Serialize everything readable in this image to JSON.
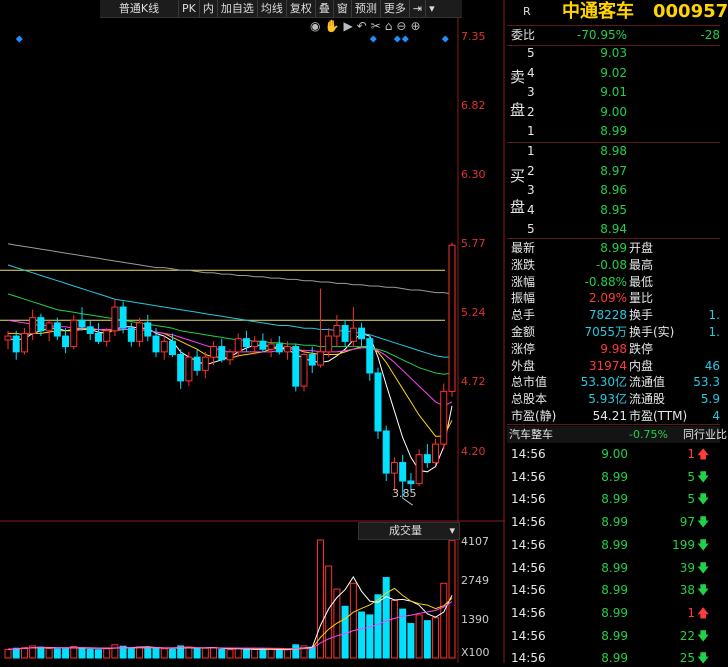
{
  "toolbar": {
    "items": [
      "普通K线",
      "PK",
      "内",
      "加自选",
      "均线",
      "复权",
      "叠",
      "窗",
      "预测",
      "更多"
    ]
  },
  "chart": {
    "price_labels": [
      "7.35",
      "6.82",
      "6.30",
      "5.77",
      "5.24",
      "4.72",
      "4.20"
    ],
    "low_marker": "3.85",
    "volume_title": "成交量",
    "volume_labels": [
      "4107",
      "2749",
      "1390",
      "X100"
    ]
  },
  "chart_data": {
    "type": "candlestick",
    "ylim": [
      3.7,
      7.45
    ],
    "price_ticks": [
      7.35,
      6.82,
      6.3,
      5.77,
      5.24,
      4.72,
      4.2
    ],
    "low": 3.85,
    "volume_ticks": [
      4107,
      2749,
      1390
    ],
    "volume_unit": "X100",
    "candles": [
      [
        5.05,
        5.12,
        4.98,
        5.08,
        300
      ],
      [
        5.08,
        5.12,
        4.9,
        4.96,
        340
      ],
      [
        4.96,
        5.14,
        4.94,
        5.1,
        360
      ],
      [
        5.1,
        5.28,
        5.05,
        5.22,
        420
      ],
      [
        5.22,
        5.25,
        5.08,
        5.12,
        380
      ],
      [
        5.12,
        5.2,
        5.04,
        5.18,
        330
      ],
      [
        5.18,
        5.22,
        5.05,
        5.08,
        310
      ],
      [
        5.08,
        5.14,
        4.95,
        5.0,
        340
      ],
      [
        5.0,
        5.24,
        4.98,
        5.2,
        400
      ],
      [
        5.2,
        5.3,
        5.12,
        5.15,
        360
      ],
      [
        5.15,
        5.2,
        5.05,
        5.1,
        300
      ],
      [
        5.1,
        5.18,
        5.02,
        5.04,
        290
      ],
      [
        5.04,
        5.14,
        5.0,
        5.12,
        320
      ],
      [
        5.12,
        5.36,
        5.08,
        5.3,
        460
      ],
      [
        5.3,
        5.34,
        5.1,
        5.14,
        410
      ],
      [
        5.14,
        5.18,
        5.0,
        5.04,
        330
      ],
      [
        5.04,
        5.22,
        5.0,
        5.18,
        380
      ],
      [
        5.18,
        5.24,
        5.04,
        5.08,
        350
      ],
      [
        5.08,
        5.14,
        4.92,
        4.96,
        360
      ],
      [
        4.96,
        5.08,
        4.9,
        5.04,
        320
      ],
      [
        5.04,
        5.1,
        4.92,
        4.94,
        300
      ],
      [
        4.94,
        4.98,
        4.68,
        4.74,
        420
      ],
      [
        4.74,
        4.96,
        4.7,
        4.92,
        380
      ],
      [
        4.92,
        4.98,
        4.78,
        4.82,
        330
      ],
      [
        4.82,
        4.96,
        4.76,
        4.92,
        340
      ],
      [
        4.92,
        5.04,
        4.86,
        5.0,
        350
      ],
      [
        5.0,
        5.06,
        4.88,
        4.9,
        300
      ],
      [
        4.9,
        4.98,
        4.86,
        4.96,
        290
      ],
      [
        4.96,
        5.1,
        4.92,
        5.06,
        330
      ],
      [
        5.06,
        5.12,
        4.96,
        5.0,
        310
      ],
      [
        5.0,
        5.08,
        4.94,
        5.04,
        300
      ],
      [
        5.04,
        5.1,
        4.96,
        4.98,
        290
      ],
      [
        4.98,
        5.06,
        4.92,
        5.02,
        300
      ],
      [
        5.02,
        5.08,
        4.94,
        4.96,
        280
      ],
      [
        4.96,
        5.04,
        4.9,
        5.0,
        290
      ],
      [
        5.0,
        5.02,
        4.66,
        4.7,
        460
      ],
      [
        4.7,
        4.98,
        4.66,
        4.94,
        420
      ],
      [
        4.94,
        5.0,
        4.8,
        4.86,
        380
      ],
      [
        4.86,
        5.44,
        4.84,
        4.96,
        4107
      ],
      [
        4.96,
        5.14,
        4.92,
        5.08,
        3200
      ],
      [
        5.08,
        5.24,
        5.0,
        5.16,
        2400
      ],
      [
        5.16,
        5.2,
        5.0,
        5.04,
        1800
      ],
      [
        5.04,
        5.3,
        5.0,
        5.14,
        2600
      ],
      [
        5.14,
        5.18,
        5.0,
        5.06,
        1600
      ],
      [
        5.06,
        5.08,
        4.74,
        4.8,
        1500
      ],
      [
        4.8,
        4.84,
        4.3,
        4.36,
        2200
      ],
      [
        4.36,
        4.4,
        3.98,
        4.04,
        2800
      ],
      [
        4.04,
        4.16,
        3.9,
        4.12,
        2000
      ],
      [
        4.12,
        4.18,
        3.85,
        3.98,
        1700
      ],
      [
        3.98,
        4.04,
        3.9,
        3.96,
        1200
      ],
      [
        3.96,
        4.22,
        3.94,
        4.18,
        1500
      ],
      [
        4.18,
        4.26,
        4.08,
        4.12,
        1300
      ],
      [
        4.12,
        4.3,
        4.1,
        4.26,
        1400
      ],
      [
        4.26,
        4.72,
        4.22,
        4.66,
        2600
      ],
      [
        4.66,
        5.79,
        4.62,
        5.77,
        4100
      ]
    ],
    "ma_series": [
      {
        "color": "#ffffff",
        "values": [
          5.06,
          5.05,
          5.06,
          5.1,
          5.12,
          5.14,
          5.14,
          5.12,
          5.13,
          5.14,
          5.13,
          5.11,
          5.1,
          5.13,
          5.15,
          5.15,
          5.14,
          5.14,
          5.1,
          5.08,
          5.04,
          4.96,
          4.92,
          4.89,
          4.86,
          4.88,
          4.9,
          4.92,
          4.96,
          4.99,
          5.01,
          5.01,
          5.0,
          4.99,
          4.98,
          4.94,
          4.91,
          4.89,
          4.88,
          4.89,
          4.93,
          4.98,
          5.05,
          5.1,
          5.08,
          4.92,
          4.71,
          4.51,
          4.31,
          4.16,
          4.06,
          4.05,
          4.09,
          4.24,
          4.55
        ]
      },
      {
        "color": "#ffd400",
        "values": [
          5.1,
          5.1,
          5.09,
          5.1,
          5.1,
          5.11,
          5.12,
          5.12,
          5.12,
          5.13,
          5.13,
          5.13,
          5.12,
          5.12,
          5.13,
          5.13,
          5.13,
          5.12,
          5.11,
          5.1,
          5.07,
          5.04,
          5.01,
          4.98,
          4.94,
          4.92,
          4.92,
          4.91,
          4.93,
          4.94,
          4.95,
          4.96,
          4.98,
          4.99,
          5.0,
          4.98,
          4.96,
          4.95,
          4.94,
          4.94,
          4.94,
          4.96,
          4.98,
          5.0,
          5.0,
          4.96,
          4.88,
          4.78,
          4.68,
          4.58,
          4.48,
          4.4,
          4.32,
          4.32,
          4.44
        ]
      },
      {
        "color": "#ff44ff",
        "values": [
          5.2,
          5.19,
          5.18,
          5.17,
          5.16,
          5.16,
          5.15,
          5.15,
          5.14,
          5.14,
          5.14,
          5.13,
          5.13,
          5.13,
          5.13,
          5.13,
          5.13,
          5.12,
          5.11,
          5.1,
          5.09,
          5.07,
          5.05,
          5.03,
          5.01,
          4.99,
          4.97,
          4.96,
          4.96,
          4.96,
          4.96,
          4.96,
          4.96,
          4.97,
          4.98,
          4.98,
          4.97,
          4.97,
          4.96,
          4.96,
          4.96,
          4.97,
          4.98,
          4.99,
          4.99,
          4.97,
          4.93,
          4.88,
          4.82,
          4.76,
          4.7,
          4.64,
          4.58,
          4.55,
          4.58
        ]
      },
      {
        "color": "#22d04a",
        "values": [
          5.4,
          5.38,
          5.36,
          5.34,
          5.32,
          5.3,
          5.28,
          5.27,
          5.26,
          5.25,
          5.24,
          5.23,
          5.22,
          5.21,
          5.2,
          5.19,
          5.18,
          5.17,
          5.16,
          5.15,
          5.14,
          5.12,
          5.11,
          5.1,
          5.09,
          5.08,
          5.07,
          5.06,
          5.05,
          5.05,
          5.04,
          5.04,
          5.03,
          5.03,
          5.02,
          5.02,
          5.01,
          5.01,
          5.0,
          5.0,
          5.0,
          5.0,
          5.0,
          5.0,
          4.99,
          4.98,
          4.96,
          4.93,
          4.9,
          4.87,
          4.84,
          4.82,
          4.8,
          4.79,
          4.8
        ]
      },
      {
        "color": "#23c9e0",
        "values": [
          5.62,
          5.6,
          5.58,
          5.56,
          5.54,
          5.52,
          5.5,
          5.48,
          5.46,
          5.44,
          5.42,
          5.4,
          5.38,
          5.36,
          5.35,
          5.34,
          5.33,
          5.32,
          5.31,
          5.3,
          5.29,
          5.28,
          5.27,
          5.26,
          5.25,
          5.24,
          5.23,
          5.22,
          5.21,
          5.2,
          5.19,
          5.18,
          5.17,
          5.16,
          5.16,
          5.15,
          5.14,
          5.14,
          5.13,
          5.13,
          5.12,
          5.12,
          5.11,
          5.1,
          5.09,
          5.07,
          5.05,
          5.03,
          5.01,
          4.99,
          4.97,
          4.95,
          4.93,
          4.92,
          4.92
        ]
      },
      {
        "color": "#9a9a9a",
        "values": [
          5.78,
          5.77,
          5.76,
          5.75,
          5.74,
          5.73,
          5.72,
          5.71,
          5.7,
          5.69,
          5.68,
          5.67,
          5.66,
          5.65,
          5.64,
          5.63,
          5.62,
          5.61,
          5.6,
          5.6,
          5.59,
          5.58,
          5.58,
          5.57,
          5.56,
          5.56,
          5.55,
          5.55,
          5.54,
          5.54,
          5.53,
          5.53,
          5.52,
          5.52,
          5.51,
          5.51,
          5.5,
          5.5,
          5.49,
          5.49,
          5.48,
          5.48,
          5.47,
          5.47,
          5.46,
          5.46,
          5.45,
          5.45,
          5.44,
          5.43,
          5.43,
          5.42,
          5.41,
          5.41,
          5.4
        ]
      }
    ],
    "h_lines": [
      {
        "y": 5.58,
        "color": "#e8e060"
      },
      {
        "y": 5.2,
        "color": "#e8e060"
      }
    ]
  },
  "quote": {
    "header": {
      "r": "R",
      "name": "中通客车",
      "code": "000957"
    },
    "weibi": {
      "label": "委比",
      "pct": "-70.95%",
      "val": "-28"
    },
    "sell": {
      "side_a": "卖",
      "side_b": "盘",
      "levels": [
        [
          "5",
          "9.03"
        ],
        [
          "4",
          "9.02"
        ],
        [
          "3",
          "9.01"
        ],
        [
          "2",
          "9.00"
        ],
        [
          "1",
          "8.99"
        ]
      ]
    },
    "buy": {
      "side_a": "买",
      "side_b": "盘",
      "levels": [
        [
          "1",
          "8.98"
        ],
        [
          "2",
          "8.97"
        ],
        [
          "3",
          "8.96"
        ],
        [
          "4",
          "8.95"
        ],
        [
          "5",
          "8.94"
        ]
      ]
    },
    "stats": [
      [
        "最新",
        "8.99",
        "开盘",
        ""
      ],
      [
        "涨跌",
        "-0.08",
        "最高",
        ""
      ],
      [
        "涨幅",
        "-0.88%",
        "最低",
        ""
      ],
      [
        "振幅",
        "2.09%",
        "量比",
        ""
      ],
      [
        "总手",
        "78228",
        "换手",
        "1."
      ],
      [
        "金额",
        "7055万",
        "换手(实)",
        "1."
      ],
      [
        "涨停",
        "9.98",
        "跌停",
        ""
      ],
      [
        "外盘",
        "31974",
        "内盘",
        "46"
      ],
      [
        "总市值",
        "53.30亿",
        "流通值",
        "53.3"
      ],
      [
        "总股本",
        "5.93亿",
        "流通股",
        "5.9"
      ],
      [
        "市盈(静)",
        "54.21",
        "市盈(TTM)",
        "4"
      ]
    ],
    "industry": {
      "name": "汽车整车",
      "pct": "-0.75%",
      "rank": "同行业比"
    },
    "ticks": [
      [
        "14:56",
        "9.00",
        "1",
        "up"
      ],
      [
        "14:56",
        "8.99",
        "5",
        "down"
      ],
      [
        "14:56",
        "8.99",
        "5",
        "down"
      ],
      [
        "14:56",
        "8.99",
        "97",
        "down"
      ],
      [
        "14:56",
        "8.99",
        "199",
        "down"
      ],
      [
        "14:56",
        "8.99",
        "39",
        "down"
      ],
      [
        "14:56",
        "8.99",
        "38",
        "down"
      ],
      [
        "14:56",
        "8.99",
        "1",
        "up"
      ],
      [
        "14:56",
        "8.99",
        "22",
        "down"
      ],
      [
        "14:56",
        "8.99",
        "25",
        "down"
      ]
    ]
  }
}
